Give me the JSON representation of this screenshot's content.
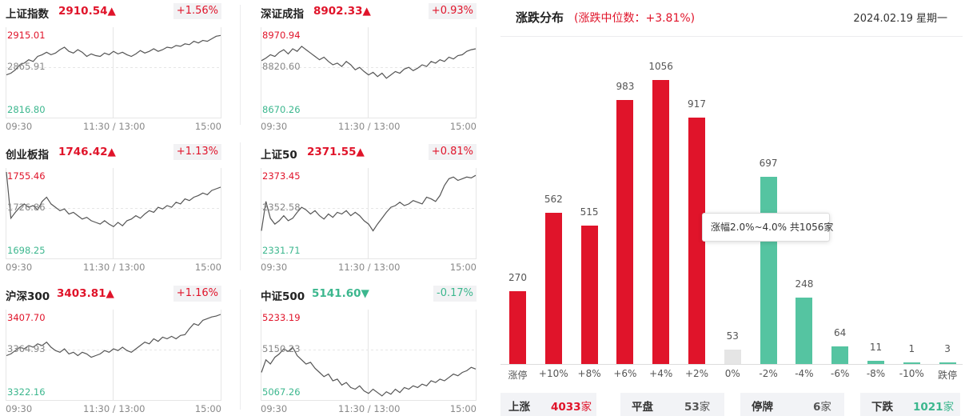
{
  "indices": [
    {
      "name": "上证指数",
      "price": "2910.54▲",
      "change": "+1.56%",
      "dir": "up",
      "high": "2915.01",
      "mid": "2865.91",
      "low": "2816.80",
      "time_start": "09:30",
      "time_mid": "11:30 / 13:00",
      "time_end": "15:00",
      "line": [
        0.52,
        0.5,
        0.46,
        0.4,
        0.38,
        0.34,
        0.36,
        0.3,
        0.28,
        0.25,
        0.28,
        0.26,
        0.22,
        0.19,
        0.24,
        0.26,
        0.22,
        0.25,
        0.3,
        0.27,
        0.29,
        0.3,
        0.26,
        0.28,
        0.24,
        0.27,
        0.25,
        0.28,
        0.3,
        0.27,
        0.23,
        0.26,
        0.24,
        0.21,
        0.24,
        0.22,
        0.19,
        0.2,
        0.17,
        0.18,
        0.15,
        0.16,
        0.12,
        0.14,
        0.11,
        0.12,
        0.09,
        0.06,
        0.05
      ]
    },
    {
      "name": "深证成指",
      "price": "8902.33▲",
      "change": "+0.93%",
      "dir": "up",
      "high": "8970.94",
      "mid": "8820.60",
      "low": "8670.26",
      "time_start": "09:30",
      "time_mid": "11:30 / 13:00",
      "time_end": "15:00",
      "line": [
        0.35,
        0.32,
        0.28,
        0.3,
        0.25,
        0.22,
        0.27,
        0.21,
        0.24,
        0.18,
        0.22,
        0.26,
        0.3,
        0.34,
        0.31,
        0.36,
        0.4,
        0.38,
        0.42,
        0.36,
        0.4,
        0.46,
        0.43,
        0.48,
        0.52,
        0.49,
        0.54,
        0.5,
        0.56,
        0.52,
        0.48,
        0.5,
        0.45,
        0.43,
        0.47,
        0.44,
        0.4,
        0.42,
        0.36,
        0.38,
        0.34,
        0.36,
        0.31,
        0.33,
        0.29,
        0.28,
        0.24,
        0.22,
        0.21
      ]
    },
    {
      "name": "创业板指",
      "price": "1746.42▲",
      "change": "+1.13%",
      "dir": "up",
      "high": "1755.46",
      "mid": "1726.86",
      "low": "1698.25",
      "time_start": "09:30",
      "time_mid": "11:30 / 13:00",
      "time_end": "15:00",
      "line": [
        0.0,
        0.55,
        0.48,
        0.42,
        0.38,
        0.42,
        0.4,
        0.45,
        0.35,
        0.3,
        0.38,
        0.42,
        0.46,
        0.44,
        0.5,
        0.48,
        0.52,
        0.56,
        0.54,
        0.58,
        0.6,
        0.62,
        0.58,
        0.62,
        0.65,
        0.6,
        0.64,
        0.58,
        0.56,
        0.52,
        0.55,
        0.5,
        0.46,
        0.48,
        0.42,
        0.44,
        0.4,
        0.42,
        0.36,
        0.38,
        0.32,
        0.34,
        0.3,
        0.28,
        0.25,
        0.27,
        0.22,
        0.2,
        0.18
      ]
    },
    {
      "name": "上证50",
      "price": "2371.55▲",
      "change": "+0.81%",
      "dir": "up",
      "high": "2373.45",
      "mid": "2352.58",
      "low": "2331.71",
      "time_start": "09:30",
      "time_mid": "11:30 / 13:00",
      "time_end": "15:00",
      "line": [
        0.7,
        0.35,
        0.55,
        0.62,
        0.58,
        0.52,
        0.58,
        0.55,
        0.48,
        0.42,
        0.45,
        0.5,
        0.46,
        0.52,
        0.56,
        0.5,
        0.54,
        0.48,
        0.5,
        0.46,
        0.52,
        0.48,
        0.52,
        0.58,
        0.62,
        0.7,
        0.62,
        0.55,
        0.48,
        0.42,
        0.4,
        0.36,
        0.4,
        0.38,
        0.34,
        0.36,
        0.38,
        0.3,
        0.32,
        0.35,
        0.28,
        0.16,
        0.08,
        0.06,
        0.1,
        0.08,
        0.06,
        0.07,
        0.04
      ]
    },
    {
      "name": "沪深300",
      "price": "3403.81▲",
      "change": "+1.16%",
      "dir": "up",
      "high": "3407.70",
      "mid": "3364.93",
      "low": "3322.16",
      "time_start": "09:30",
      "time_mid": "11:30 / 13:00",
      "time_end": "15:00",
      "line": [
        0.5,
        0.48,
        0.44,
        0.4,
        0.42,
        0.38,
        0.4,
        0.36,
        0.38,
        0.34,
        0.4,
        0.44,
        0.46,
        0.42,
        0.48,
        0.46,
        0.5,
        0.46,
        0.48,
        0.52,
        0.5,
        0.48,
        0.44,
        0.46,
        0.42,
        0.44,
        0.4,
        0.44,
        0.46,
        0.42,
        0.38,
        0.34,
        0.36,
        0.3,
        0.33,
        0.28,
        0.3,
        0.27,
        0.3,
        0.26,
        0.25,
        0.18,
        0.12,
        0.14,
        0.08,
        0.06,
        0.04,
        0.03,
        0.01
      ]
    },
    {
      "name": "中证500",
      "price": "5141.60▼",
      "change": "-0.17%",
      "dir": "down",
      "high": "5233.19",
      "mid": "5150.23",
      "low": "5067.26",
      "time_start": "09:30",
      "time_mid": "11:30 / 13:00",
      "time_end": "15:00",
      "line": [
        0.7,
        0.55,
        0.6,
        0.52,
        0.48,
        0.42,
        0.45,
        0.4,
        0.5,
        0.55,
        0.6,
        0.58,
        0.65,
        0.7,
        0.75,
        0.72,
        0.8,
        0.78,
        0.85,
        0.82,
        0.88,
        0.9,
        0.86,
        0.92,
        0.95,
        0.9,
        0.94,
        0.98,
        0.93,
        0.96,
        0.9,
        0.94,
        0.88,
        0.9,
        0.86,
        0.88,
        0.84,
        0.86,
        0.8,
        0.82,
        0.78,
        0.8,
        0.76,
        0.72,
        0.74,
        0.7,
        0.68,
        0.64,
        0.66
      ]
    }
  ],
  "panel": {
    "title": "涨跌分布",
    "subtitle": "(涨跌中位数：+3.81%)",
    "date": "2024.02.19 星期一",
    "tooltip": "涨幅2.0%~4.0% 共1056家"
  },
  "chart_data": {
    "type": "bar",
    "categories": [
      "涨停",
      "+10%",
      "+8%",
      "+6%",
      "+4%",
      "+2%",
      "0%",
      "-2%",
      "-4%",
      "-6%",
      "-8%",
      "-10%",
      "跌停"
    ],
    "values": [
      270,
      562,
      515,
      983,
      1056,
      917,
      53,
      697,
      248,
      64,
      11,
      1,
      3
    ],
    "colors": [
      "red",
      "red",
      "red",
      "red",
      "red",
      "red",
      "gray",
      "green",
      "green",
      "green",
      "green",
      "green",
      "green"
    ],
    "ylim": [
      0,
      1056
    ]
  },
  "summary": [
    {
      "label": "上涨",
      "value": "4033",
      "unit": "家",
      "dir": "up"
    },
    {
      "label": "平盘",
      "value": "53",
      "unit": "家",
      "dir": "flat"
    },
    {
      "label": "停牌",
      "value": "6",
      "unit": "家",
      "dir": "flat"
    },
    {
      "label": "下跌",
      "value": "1021",
      "unit": "家",
      "dir": "down"
    }
  ]
}
